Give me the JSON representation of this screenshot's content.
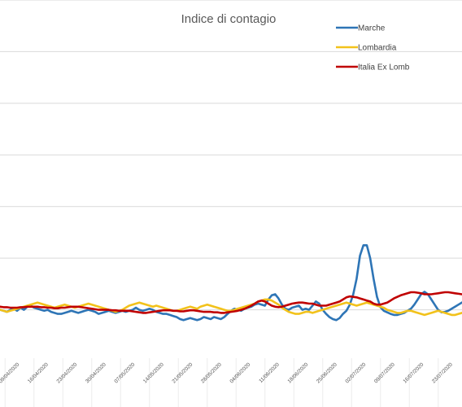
{
  "chart_data": {
    "type": "line",
    "title": "Indice di contagio",
    "xlabel": "",
    "ylabel": "",
    "grid": true,
    "legend": "top-right",
    "x_tick_labels": [
      "09/04/2020",
      "16/04/2020",
      "23/04/2020",
      "30/04/2020",
      "07/05/2020",
      "14/05/2020",
      "21/05/2020",
      "28/05/2020",
      "04/06/2020",
      "11/06/2020",
      "18/06/2020",
      "25/06/2020",
      "02/07/2020",
      "09/07/2020",
      "16/07/2020",
      "23/07/2020"
    ],
    "ylim": [
      0,
      7
    ],
    "x": [
      0,
      1,
      2,
      3,
      4,
      5,
      6,
      7,
      8,
      9,
      10,
      11,
      12,
      13,
      14,
      15,
      16,
      17,
      18,
      19,
      20,
      21,
      22,
      23,
      24,
      25,
      26,
      27,
      28,
      29,
      30,
      31,
      32,
      33,
      34,
      35,
      36,
      37,
      38,
      39,
      40,
      41,
      42,
      43,
      44,
      45,
      46,
      47,
      48,
      49,
      50,
      51,
      52,
      53,
      54,
      55,
      56,
      57,
      58,
      59,
      60,
      61,
      62,
      63,
      64,
      65,
      66,
      67,
      68,
      69,
      70,
      71,
      72,
      73,
      74,
      75,
      76,
      77,
      78,
      79,
      80,
      81,
      82,
      83,
      84,
      85,
      86,
      87,
      88,
      89,
      90,
      91,
      92,
      93,
      94,
      95,
      96,
      97,
      98,
      99,
      100,
      101,
      102,
      103,
      104,
      105,
      106,
      107,
      108,
      109,
      110,
      111,
      112,
      113,
      114,
      115,
      116,
      117,
      118,
      119,
      120,
      121,
      122,
      123,
      124,
      125,
      126,
      127,
      128,
      129,
      130,
      131,
      132,
      133,
      134,
      135,
      136,
      137,
      138
    ],
    "series": [
      {
        "name": "Marche",
        "color": "#2e75b6",
        "values": [
          1.04,
          1.0,
          0.98,
          0.96,
          1.0,
          1.02,
          0.98,
          1.04,
          1.0,
          1.06,
          1.08,
          1.04,
          1.02,
          1.0,
          0.98,
          1.0,
          0.96,
          0.94,
          0.92,
          0.92,
          0.94,
          0.96,
          0.98,
          0.96,
          0.94,
          0.96,
          0.98,
          1.0,
          0.98,
          0.96,
          0.92,
          0.94,
          0.96,
          0.98,
          0.96,
          0.94,
          0.96,
          0.98,
          0.96,
          0.98,
          1.0,
          1.04,
          1.0,
          0.98,
          1.0,
          1.02,
          1.0,
          0.96,
          0.94,
          0.92,
          0.92,
          0.9,
          0.88,
          0.86,
          0.82,
          0.8,
          0.82,
          0.84,
          0.82,
          0.8,
          0.82,
          0.86,
          0.84,
          0.82,
          0.86,
          0.84,
          0.82,
          0.86,
          0.92,
          0.98,
          1.02,
          1.0,
          0.98,
          1.02,
          1.04,
          1.06,
          1.1,
          1.12,
          1.1,
          1.08,
          1.2,
          1.28,
          1.3,
          1.22,
          1.1,
          1.02,
          1.0,
          1.04,
          1.06,
          1.08,
          1.0,
          1.02,
          1.0,
          1.08,
          1.16,
          1.12,
          1.0,
          0.92,
          0.86,
          0.82,
          0.8,
          0.84,
          0.92,
          0.98,
          1.1,
          1.3,
          1.6,
          2.05,
          2.25,
          2.25,
          2.0,
          1.6,
          1.25,
          1.05,
          0.98,
          0.95,
          0.92,
          0.9,
          0.9,
          0.92,
          0.94,
          0.98,
          1.02,
          1.1,
          1.2,
          1.3,
          1.35,
          1.3,
          1.2,
          1.1,
          1.0,
          0.95,
          0.96,
          0.98,
          1.02,
          1.06,
          1.1,
          1.14,
          1.18
        ],
        "note": ""
      },
      {
        "name": "Lombardia",
        "color": "#f2c21b",
        "values": [
          1.02,
          1.0,
          0.98,
          0.96,
          0.98,
          1.0,
          1.02,
          1.04,
          1.06,
          1.08,
          1.1,
          1.12,
          1.14,
          1.12,
          1.1,
          1.08,
          1.06,
          1.04,
          1.06,
          1.08,
          1.1,
          1.08,
          1.06,
          1.04,
          1.06,
          1.08,
          1.1,
          1.12,
          1.1,
          1.08,
          1.06,
          1.04,
          1.02,
          1.0,
          0.98,
          0.96,
          0.98,
          1.0,
          1.04,
          1.08,
          1.1,
          1.12,
          1.14,
          1.12,
          1.1,
          1.08,
          1.06,
          1.08,
          1.06,
          1.04,
          1.02,
          1.0,
          0.98,
          0.98,
          1.0,
          1.02,
          1.04,
          1.06,
          1.04,
          1.02,
          1.06,
          1.08,
          1.1,
          1.08,
          1.06,
          1.04,
          1.02,
          1.0,
          0.98,
          0.98,
          1.0,
          1.02,
          1.04,
          1.06,
          1.08,
          1.1,
          1.12,
          1.16,
          1.18,
          1.2,
          1.2,
          1.18,
          1.14,
          1.1,
          1.04,
          1.0,
          0.96,
          0.94,
          0.92,
          0.92,
          0.94,
          0.96,
          0.96,
          0.94,
          0.96,
          0.98,
          1.0,
          1.02,
          1.04,
          1.06,
          1.08,
          1.1,
          1.12,
          1.14,
          1.12,
          1.1,
          1.08,
          1.1,
          1.12,
          1.14,
          1.12,
          1.1,
          1.08,
          1.06,
          1.04,
          1.0,
          0.98,
          0.96,
          0.94,
          0.94,
          0.96,
          0.98,
          0.98,
          0.96,
          0.94,
          0.92,
          0.9,
          0.92,
          0.94,
          0.96,
          0.98,
          0.96,
          0.94,
          0.92,
          0.9,
          0.9,
          0.92,
          0.94,
          0.96
        ],
        "note": ""
      },
      {
        "name": "Italia Ex Lomb",
        "color": "#c00000",
        "values": [
          1.06,
          1.06,
          1.05,
          1.05,
          1.04,
          1.04,
          1.04,
          1.05,
          1.05,
          1.06,
          1.06,
          1.06,
          1.06,
          1.05,
          1.05,
          1.04,
          1.04,
          1.03,
          1.03,
          1.04,
          1.04,
          1.05,
          1.06,
          1.06,
          1.06,
          1.05,
          1.04,
          1.03,
          1.02,
          1.01,
          1.0,
          1.0,
          1.0,
          1.0,
          0.99,
          0.99,
          0.98,
          0.98,
          0.98,
          0.98,
          0.97,
          0.96,
          0.95,
          0.94,
          0.94,
          0.95,
          0.96,
          0.97,
          0.98,
          0.99,
          0.99,
          0.99,
          0.98,
          0.98,
          0.97,
          0.97,
          0.98,
          0.99,
          0.99,
          0.98,
          0.97,
          0.96,
          0.96,
          0.96,
          0.95,
          0.95,
          0.94,
          0.94,
          0.95,
          0.96,
          0.97,
          0.98,
          1.0,
          1.02,
          1.05,
          1.08,
          1.12,
          1.16,
          1.18,
          1.16,
          1.12,
          1.08,
          1.06,
          1.05,
          1.06,
          1.08,
          1.1,
          1.12,
          1.13,
          1.14,
          1.14,
          1.13,
          1.12,
          1.12,
          1.1,
          1.08,
          1.08,
          1.08,
          1.1,
          1.12,
          1.14,
          1.16,
          1.2,
          1.24,
          1.26,
          1.25,
          1.24,
          1.22,
          1.2,
          1.18,
          1.16,
          1.12,
          1.1,
          1.1,
          1.12,
          1.14,
          1.18,
          1.22,
          1.25,
          1.28,
          1.3,
          1.32,
          1.34,
          1.34,
          1.33,
          1.32,
          1.3,
          1.3,
          1.3,
          1.31,
          1.32,
          1.33,
          1.34,
          1.34,
          1.33,
          1.32,
          1.31,
          1.3,
          1.3
        ],
        "note": ""
      }
    ]
  }
}
